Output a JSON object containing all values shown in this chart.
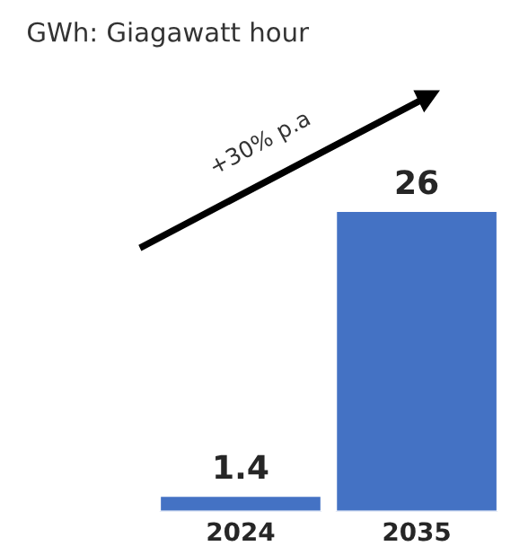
{
  "chart_data": {
    "type": "bar",
    "subtitle": "GWh: Giagawatt hour",
    "categories": [
      "2024",
      "2035"
    ],
    "values": [
      1.4,
      26
    ],
    "color": "#4472c4",
    "data_labels": true,
    "tick_labels": "x",
    "grid": false,
    "annotations": [
      "+30% p.a"
    ]
  }
}
